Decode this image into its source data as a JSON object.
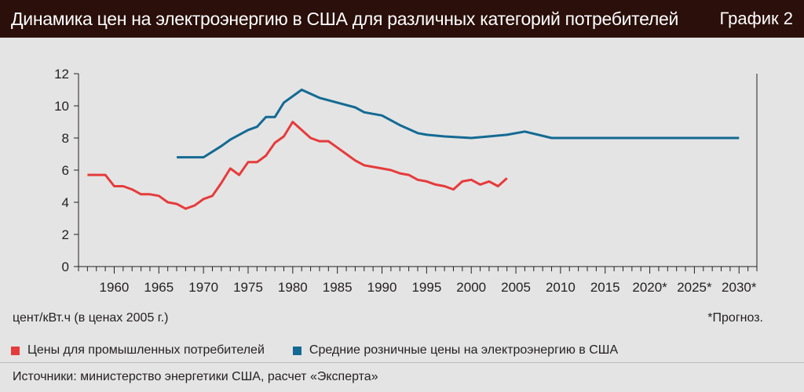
{
  "header": {
    "title": "Динамика цен на электроэнергию в США для различных категорий потребителей",
    "graph_label": "График 2"
  },
  "chart_data": {
    "type": "line",
    "ylim": [
      0,
      12
    ],
    "yticks": [
      0,
      2,
      4,
      6,
      8,
      10,
      12
    ],
    "xlim": [
      1956,
      2032
    ],
    "xticks": [
      {
        "value": 1960,
        "label": "1960"
      },
      {
        "value": 1965,
        "label": "1965"
      },
      {
        "value": 1970,
        "label": "1970"
      },
      {
        "value": 1975,
        "label": "1975"
      },
      {
        "value": 1980,
        "label": "1980"
      },
      {
        "value": 1985,
        "label": "1985"
      },
      {
        "value": 1990,
        "label": "1990"
      },
      {
        "value": 1995,
        "label": "1995"
      },
      {
        "value": 2000,
        "label": "2000"
      },
      {
        "value": 2005,
        "label": "2005"
      },
      {
        "value": 2010,
        "label": "2010"
      },
      {
        "value": 2015,
        "label": "2015"
      },
      {
        "value": 2020,
        "label": "2020*"
      },
      {
        "value": 2025,
        "label": "2025*"
      },
      {
        "value": 2030,
        "label": "2030*"
      }
    ],
    "grid": false,
    "ylabel": "цент/кВт.ч (в ценах 2005 г.)",
    "note": "*Прогноз.",
    "legend_position": "bottom",
    "series": [
      {
        "name": "Цены для промышленных потребителей",
        "color": "#e63b3b",
        "x": [
          1957,
          1958,
          1959,
          1960,
          1961,
          1962,
          1963,
          1964,
          1965,
          1966,
          1967,
          1968,
          1969,
          1970,
          1971,
          1972,
          1973,
          1974,
          1975,
          1976,
          1977,
          1978,
          1979,
          1980,
          1981,
          1982,
          1983,
          1984,
          1985,
          1986,
          1987,
          1988,
          1989,
          1990,
          1991,
          1992,
          1993,
          1994,
          1995,
          1996,
          1997,
          1998,
          1999,
          2000,
          2001,
          2002,
          2003,
          2004
        ],
        "values": [
          5.7,
          5.7,
          5.7,
          5.0,
          5.0,
          4.8,
          4.5,
          4.5,
          4.4,
          4.0,
          3.9,
          3.6,
          3.8,
          4.2,
          4.4,
          5.2,
          6.1,
          5.7,
          6.5,
          6.5,
          6.9,
          7.7,
          8.1,
          9.0,
          8.5,
          8.0,
          7.8,
          7.8,
          7.4,
          7.0,
          6.6,
          6.3,
          6.2,
          6.1,
          6.0,
          5.8,
          5.7,
          5.4,
          5.3,
          5.1,
          5.0,
          4.8,
          5.3,
          5.4,
          5.1,
          5.3,
          5.0,
          5.5
        ]
      },
      {
        "name": "Средние розничные цены на электроэнергию в США",
        "color": "#136a93",
        "x": [
          1967,
          1968,
          1969,
          1970,
          1972,
          1973,
          1975,
          1976,
          1977,
          1978,
          1979,
          1981,
          1983,
          1985,
          1987,
          1988,
          1990,
          1992,
          1994,
          1995,
          1997,
          2000,
          2002,
          2004,
          2006,
          2009,
          2012,
          2015,
          2020,
          2025,
          2030
        ],
        "values": [
          6.8,
          6.8,
          6.8,
          6.8,
          7.5,
          7.9,
          8.5,
          8.7,
          9.3,
          9.3,
          10.2,
          11.0,
          10.5,
          10.2,
          9.9,
          9.6,
          9.4,
          8.8,
          8.3,
          8.2,
          8.1,
          8.0,
          8.1,
          8.2,
          8.4,
          8.0,
          8.0,
          8.0,
          8.0,
          8.0,
          8.0
        ]
      }
    ]
  },
  "source": "Источники: министерство энергетики США, расчет «Эксперта»"
}
